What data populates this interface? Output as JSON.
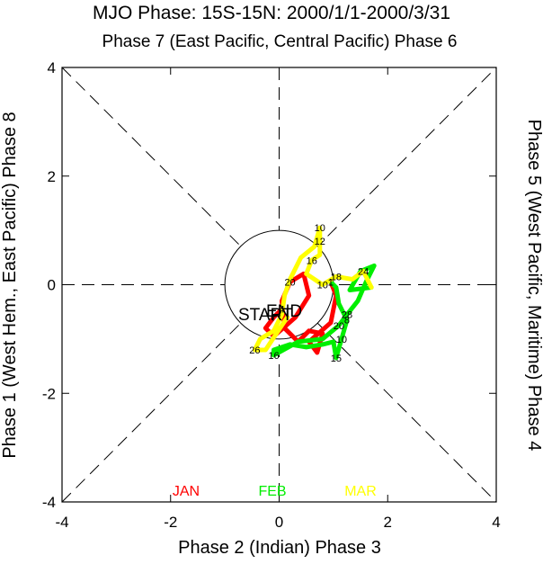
{
  "chart_data": {
    "type": "line",
    "title": "MJO Phase: 15S-15N: 2000/1/1-2000/3/31",
    "xlabel": "Phase 2 (Indian) Phase 3",
    "ylabel": "Phase 1 (West Hem., East Pacific) Phase 8",
    "top_label": "Phase 7 (East Pacific, Central Pacific) Phase 6",
    "right_label": "Phase 5 (West Pacific, Maritime) Phase 4",
    "xlim": [
      -4,
      4
    ],
    "ylim": [
      -4,
      4
    ],
    "x_ticks": [
      "-4",
      "-2",
      "0",
      "2",
      "4"
    ],
    "y_ticks": [
      "-4",
      "-2",
      "0",
      "2",
      "4"
    ],
    "start_label": "START",
    "end_label": "END",
    "series": [
      {
        "name": "JAN",
        "color": "#ff0000",
        "points": [
          {
            "x": 0.1,
            "y": -0.7
          },
          {
            "x": 0.05,
            "y": -0.45,
            "label": "4"
          },
          {
            "x": -0.1,
            "y": -0.6,
            "label": "7"
          },
          {
            "x": -0.25,
            "y": -0.8
          },
          {
            "x": -0.1,
            "y": -0.95
          },
          {
            "x": 0.3,
            "y": -0.6
          },
          {
            "x": 0.55,
            "y": -0.2
          },
          {
            "x": 0.45,
            "y": 0.2
          },
          {
            "x": 0.2,
            "y": 0.05,
            "label": "20"
          },
          {
            "x": 0.05,
            "y": -0.3
          },
          {
            "x": 0.1,
            "y": -0.8
          },
          {
            "x": 0.35,
            "y": -1.05
          },
          {
            "x": 0.55,
            "y": -0.85
          },
          {
            "x": 0.8,
            "y": -0.9
          },
          {
            "x": 0.7,
            "y": -1.25
          },
          {
            "x": 0.55,
            "y": -1.05
          },
          {
            "x": 0.95,
            "y": -0.7
          },
          {
            "x": 1.05,
            "y": -0.2
          },
          {
            "x": 0.95,
            "y": 0.05,
            "label": "1"
          }
        ]
      },
      {
        "name": "FEB",
        "color": "#00ee00",
        "points": [
          {
            "x": 0.95,
            "y": 0.05,
            "label": "1"
          },
          {
            "x": 1.05,
            "y": -0.05
          },
          {
            "x": 1.1,
            "y": -0.35
          },
          {
            "x": 1.25,
            "y": -0.65,
            "label": "8"
          },
          {
            "x": 1.15,
            "y": -1.0,
            "label": "10"
          },
          {
            "x": 1.05,
            "y": -1.35,
            "label": "15"
          },
          {
            "x": 1.0,
            "y": -1.05
          },
          {
            "x": 0.8,
            "y": -1.1
          },
          {
            "x": 0.5,
            "y": -1.15
          },
          {
            "x": 0.2,
            "y": -1.1
          },
          {
            "x": -0.1,
            "y": -1.2
          },
          {
            "x": -0.1,
            "y": -1.3,
            "label": "16"
          },
          {
            "x": 0.35,
            "y": -1.05
          },
          {
            "x": 0.8,
            "y": -1.0
          },
          {
            "x": 1.1,
            "y": -0.75,
            "label": "20"
          },
          {
            "x": 1.25,
            "y": -0.55,
            "label": "28"
          },
          {
            "x": 1.45,
            "y": -0.3
          },
          {
            "x": 1.6,
            "y": 0.05
          },
          {
            "x": 1.75,
            "y": 0.35
          },
          {
            "x": 1.5,
            "y": 0.25
          },
          {
            "x": 1.3,
            "y": -0.1
          },
          {
            "x": 1.7,
            "y": -0.05
          }
        ]
      },
      {
        "name": "MAR",
        "color": "#ffff00",
        "points": [
          {
            "x": 1.7,
            "y": -0.05
          },
          {
            "x": 1.55,
            "y": 0.25,
            "label": "24"
          },
          {
            "x": 1.35,
            "y": 0.1
          },
          {
            "x": 1.05,
            "y": 0.15,
            "label": "18"
          },
          {
            "x": 0.8,
            "y": 0.0,
            "label": "10"
          },
          {
            "x": 0.5,
            "y": 0.2
          },
          {
            "x": 0.6,
            "y": 0.45,
            "label": "16"
          },
          {
            "x": 0.75,
            "y": 0.55
          },
          {
            "x": 0.75,
            "y": 0.8,
            "label": "12"
          },
          {
            "x": 0.75,
            "y": 1.05,
            "label": "10"
          },
          {
            "x": 0.65,
            "y": 0.7
          },
          {
            "x": 0.4,
            "y": 0.5
          },
          {
            "x": 0.2,
            "y": 0.1
          },
          {
            "x": 0.1,
            "y": -0.2
          },
          {
            "x": 0.05,
            "y": -0.55
          },
          {
            "x": -0.1,
            "y": -0.85
          },
          {
            "x": -0.35,
            "y": -1.0
          },
          {
            "x": -0.45,
            "y": -1.2,
            "label": "26"
          },
          {
            "x": -0.25,
            "y": -1.2
          },
          {
            "x": -0.05,
            "y": -0.9
          },
          {
            "x": 0.05,
            "y": -0.75
          },
          {
            "x": 0.15,
            "y": -0.6
          }
        ]
      }
    ]
  }
}
